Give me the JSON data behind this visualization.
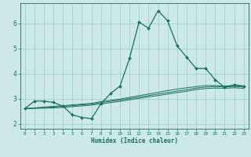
{
  "title": "",
  "xlabel": "Humidex (Indice chaleur)",
  "ylabel": "",
  "bg_color": "#cce8e8",
  "grid_color": "#99cccc",
  "line_color": "#1a7060",
  "xlim": [
    -0.5,
    23.5
  ],
  "ylim": [
    1.8,
    6.8
  ],
  "yticks": [
    2,
    3,
    4,
    5,
    6
  ],
  "xticks": [
    0,
    1,
    2,
    3,
    4,
    5,
    6,
    7,
    8,
    9,
    10,
    11,
    12,
    13,
    14,
    15,
    16,
    17,
    18,
    19,
    20,
    21,
    22,
    23
  ],
  "line1_x": [
    0,
    1,
    2,
    3,
    4,
    5,
    6,
    7,
    8,
    9,
    10,
    11,
    12,
    13,
    14,
    15,
    16,
    17,
    18,
    19,
    20,
    21,
    22,
    23
  ],
  "line1_y": [
    2.6,
    2.9,
    2.9,
    2.85,
    2.7,
    2.35,
    2.25,
    2.2,
    2.8,
    3.2,
    3.5,
    4.6,
    6.05,
    5.8,
    6.5,
    6.1,
    5.1,
    4.65,
    4.2,
    4.2,
    3.75,
    3.45,
    3.55,
    3.5
  ],
  "line2_x": [
    0,
    1,
    2,
    3,
    4,
    5,
    6,
    7,
    8,
    9,
    10,
    11,
    12,
    13,
    14,
    15,
    16,
    17,
    18,
    19,
    20,
    21,
    22,
    23
  ],
  "line2_y": [
    2.6,
    2.63,
    2.66,
    2.69,
    2.72,
    2.75,
    2.78,
    2.81,
    2.88,
    2.93,
    2.98,
    3.05,
    3.12,
    3.18,
    3.25,
    3.32,
    3.38,
    3.43,
    3.48,
    3.52,
    3.52,
    3.5,
    3.52,
    3.5
  ],
  "line3_x": [
    0,
    1,
    2,
    3,
    4,
    5,
    6,
    7,
    8,
    9,
    10,
    11,
    12,
    13,
    14,
    15,
    16,
    17,
    18,
    19,
    20,
    21,
    22,
    23
  ],
  "line3_y": [
    2.6,
    2.62,
    2.64,
    2.66,
    2.69,
    2.72,
    2.75,
    2.78,
    2.84,
    2.89,
    2.94,
    3.0,
    3.06,
    3.12,
    3.18,
    3.24,
    3.3,
    3.35,
    3.42,
    3.46,
    3.48,
    3.46,
    3.48,
    3.46
  ],
  "line4_x": [
    0,
    1,
    2,
    3,
    4,
    5,
    6,
    7,
    8,
    9,
    10,
    11,
    12,
    13,
    14,
    15,
    16,
    17,
    18,
    19,
    20,
    21,
    22,
    23
  ],
  "line4_y": [
    2.6,
    2.61,
    2.62,
    2.63,
    2.65,
    2.68,
    2.71,
    2.74,
    2.79,
    2.84,
    2.89,
    2.95,
    3.01,
    3.07,
    3.12,
    3.18,
    3.24,
    3.29,
    3.36,
    3.4,
    3.42,
    3.41,
    3.43,
    3.41
  ]
}
